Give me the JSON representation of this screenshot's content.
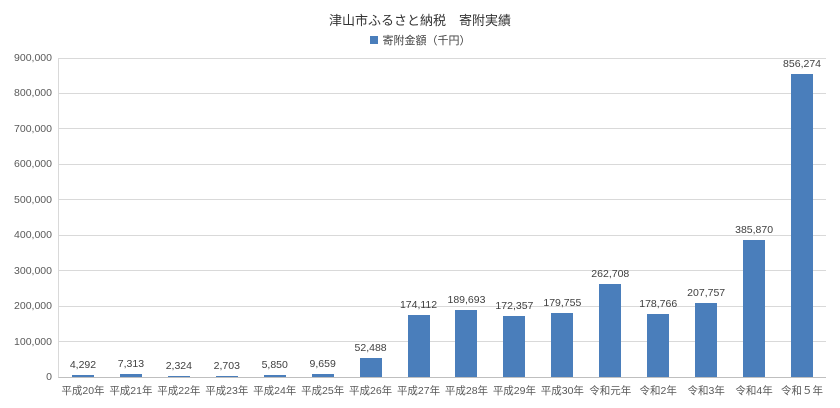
{
  "chart": {
    "title": "津山市ふるさと納税　寄附実績",
    "legend_label": "寄附金額（千円）"
  },
  "chart_data": {
    "type": "bar",
    "title": "津山市ふるさと納税　寄附実績",
    "legend": [
      "寄附金額（千円）"
    ],
    "legend_position": "top",
    "grid": "horizontal",
    "xlabel": "",
    "ylabel": "",
    "ylim": [
      0,
      900000
    ],
    "y_tick_step": 100000,
    "y_tick_labels": [
      "0",
      "100,000",
      "200,000",
      "300,000",
      "400,000",
      "500,000",
      "600,000",
      "700,000",
      "800,000",
      "900,000"
    ],
    "categories": [
      "平成20年",
      "平成21年",
      "平成22年",
      "平成23年",
      "平成24年",
      "平成25年",
      "平成26年",
      "平成27年",
      "平成28年",
      "平成29年",
      "平成30年",
      "令和元年",
      "令和2年",
      "令和3年",
      "令和4年",
      "令和５年"
    ],
    "series": [
      {
        "name": "寄附金額（千円）",
        "values": [
          4292,
          7313,
          2324,
          2703,
          5850,
          9659,
          52488,
          174112,
          189693,
          172357,
          179755,
          262708,
          178766,
          207757,
          385870,
          856274
        ],
        "value_labels": [
          "4,292",
          "7,313",
          "2,324",
          "2,703",
          "5,850",
          "9,659",
          "52,488",
          "174,112",
          "189,693",
          "172,357",
          "179,755",
          "262,708",
          "178,766",
          "207,757",
          "385,870",
          "856,274"
        ]
      }
    ],
    "bar_color": "#4a7ebb"
  }
}
